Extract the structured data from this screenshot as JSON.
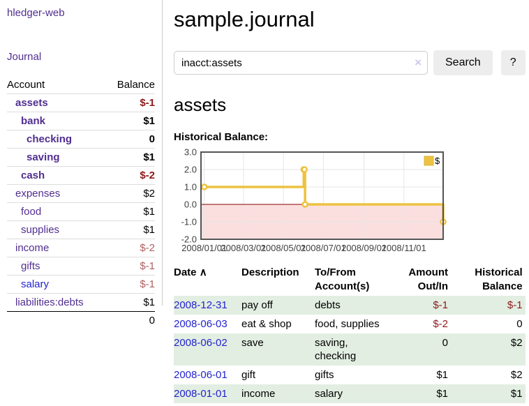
{
  "app": {
    "title": "hledger-web",
    "nav_journal": "Journal"
  },
  "sidebar": {
    "columns": {
      "account": "Account",
      "balance": "Balance"
    },
    "accounts": [
      {
        "name": "assets",
        "balance": "$-1",
        "depth": 1,
        "bold": true,
        "unvisited": false
      },
      {
        "name": "bank",
        "balance": "$1",
        "depth": 2,
        "bold": true,
        "unvisited": false
      },
      {
        "name": "checking",
        "balance": "0",
        "depth": 3,
        "bold": true,
        "unvisited": false
      },
      {
        "name": "saving",
        "balance": "$1",
        "depth": 3,
        "bold": true,
        "unvisited": false
      },
      {
        "name": "cash",
        "balance": "$-2",
        "depth": 2,
        "bold": true,
        "unvisited": false
      },
      {
        "name": "expenses",
        "balance": "$2",
        "depth": 1,
        "bold": false,
        "unvisited": false
      },
      {
        "name": "food",
        "balance": "$1",
        "depth": 2,
        "bold": false,
        "unvisited": false
      },
      {
        "name": "supplies",
        "balance": "$1",
        "depth": 2,
        "bold": false,
        "unvisited": false
      },
      {
        "name": "income",
        "balance": "$-2",
        "depth": 1,
        "bold": false,
        "unvisited": false
      },
      {
        "name": "gifts",
        "balance": "$-1",
        "depth": 2,
        "bold": false,
        "unvisited": false
      },
      {
        "name": "salary",
        "balance": "$-1",
        "depth": 2,
        "bold": false,
        "unvisited": true
      },
      {
        "name": "liabilities:debts",
        "balance": "$1",
        "depth": 1,
        "bold": false,
        "unvisited": false
      }
    ],
    "total": "0"
  },
  "main": {
    "title": "sample.journal",
    "search": {
      "value": "inacct:assets",
      "clear_icon": "×",
      "button": "Search",
      "help_button": "?"
    },
    "account_heading": "assets",
    "chart_heading": "Historical Balance:"
  },
  "chart_data": {
    "type": "line",
    "step": true,
    "title": "Historical Balance:",
    "series": [
      {
        "name": "$",
        "color": "#EDC240",
        "points": [
          [
            "2008-01-01",
            1.0
          ],
          [
            "2008-06-01",
            2.0
          ],
          [
            "2008-06-02",
            2.0
          ],
          [
            "2008-06-03",
            0.0
          ],
          [
            "2008-12-31",
            -1.0
          ]
        ]
      }
    ],
    "x_ticks": [
      "2008/01/01",
      "2008/03/01",
      "2008/05/01",
      "2008/07/01",
      "2008/09/01",
      "2008/11/01"
    ],
    "y_ticks": [
      "3.0",
      "2.0",
      "1.0",
      "0.0",
      "-1.0",
      "-2.0"
    ],
    "ylim": [
      -2,
      3
    ],
    "xlim": [
      "2007-12-27",
      "2008-12-31"
    ],
    "grid": true,
    "legend_position": "top-right",
    "negative_region_shaded": true
  },
  "register": {
    "columns": [
      "Date",
      "Description",
      "To/From Account(s)",
      "Amount Out/In",
      "Historical Balance"
    ],
    "sort_icon": "∧",
    "rows": [
      {
        "date": "2008-12-31",
        "description": "pay off",
        "accounts": "debts",
        "amount": "$-1",
        "balance": "$-1"
      },
      {
        "date": "2008-06-03",
        "description": "eat & shop",
        "accounts": "food, supplies",
        "amount": "$-2",
        "balance": "0"
      },
      {
        "date": "2008-06-02",
        "description": "save",
        "accounts": "saving, checking",
        "amount": "0",
        "balance": "$2"
      },
      {
        "date": "2008-06-01",
        "description": "gift",
        "accounts": "gifts",
        "amount": "$1",
        "balance": "$2"
      },
      {
        "date": "2008-01-01",
        "description": "income",
        "accounts": "salary",
        "amount": "$1",
        "balance": "$1"
      }
    ]
  },
  "colors": {
    "link_purple": "#512E90",
    "link_blue": "#2323D0",
    "negative_strong": "#8E1A1A",
    "negative_soft": "#B06060",
    "row_green": "#E2EEE2",
    "series_gold": "#EDC240",
    "negative_region_pink": "#FBDFDF",
    "zero_line_red": "#8B0000",
    "chart_border_gray": "#545454",
    "gridline": "#E6E6E6",
    "button_gray": "#EDEDED",
    "border_light": "#CCCCCC",
    "tick_label": "#3F3F3F"
  }
}
